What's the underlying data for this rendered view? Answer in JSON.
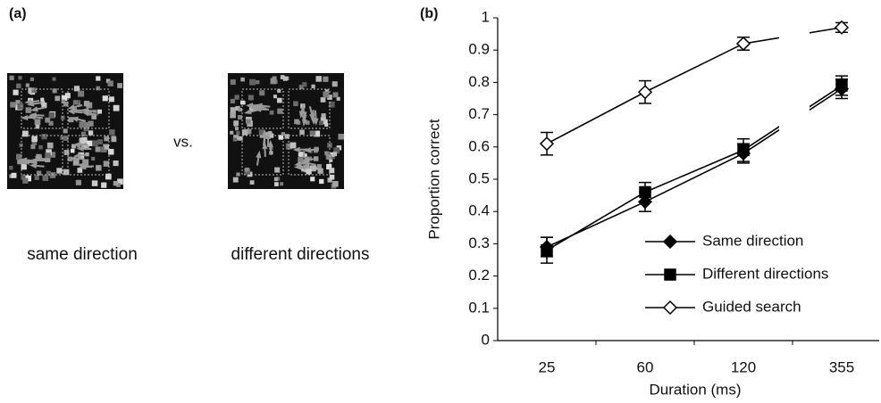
{
  "panel_a": {
    "label": "(a)",
    "separator": "vs.",
    "captions": [
      "same direction",
      "different directions"
    ]
  },
  "chart_data": {
    "type": "line",
    "panel_label": "(b)",
    "x_label": "Duration (ms)",
    "y_label": "Proportion correct",
    "categories": [
      "25",
      "60",
      "120",
      "355"
    ],
    "series": [
      {
        "name": "Same direction",
        "color": "#000000",
        "marker": "diamond",
        "values": [
          0.29,
          0.43,
          0.58,
          0.78
        ],
        "errors": [
          0.03,
          0.03,
          0.03,
          0.03
        ]
      },
      {
        "name": "Different directions",
        "color": "#000000",
        "marker": "square",
        "values": [
          0.28,
          0.46,
          0.59,
          0.79
        ],
        "errors": [
          0.04,
          0.03,
          0.035,
          0.03
        ]
      },
      {
        "name": "Guided search",
        "color": "#000000",
        "marker": "diamond-open",
        "values": [
          0.61,
          0.77,
          0.92,
          0.97
        ],
        "errors": [
          0.035,
          0.035,
          0.02,
          0.015
        ]
      }
    ],
    "ylim": [
      0,
      1
    ],
    "yticks": [
      0,
      0.1,
      0.2,
      0.3,
      0.4,
      0.5,
      0.6,
      0.7,
      0.8,
      0.9,
      1
    ],
    "grid": false,
    "legend": "lower right"
  }
}
